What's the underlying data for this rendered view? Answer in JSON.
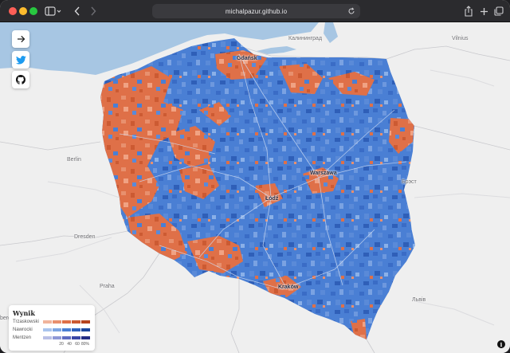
{
  "browser": {
    "url": "michalpazur.github.io"
  },
  "icons": {
    "sidebar": "sidebar-icon",
    "back": "chevron-left-icon",
    "forward": "chevron-right-icon",
    "reload": "reload-icon",
    "share": "share-icon",
    "new_tab": "plus-icon",
    "tabs": "tabs-overview-icon",
    "arrow": "arrow-right-icon",
    "twitter": "twitter-icon",
    "github": "github-icon",
    "info": "info-icon"
  },
  "map": {
    "cities_major": [
      {
        "id": "gdansk",
        "name": "Gdańsk"
      },
      {
        "id": "warszawa",
        "name": "Warszawa"
      },
      {
        "id": "lodz",
        "name": "Łódź"
      },
      {
        "id": "krakow",
        "name": "Kraków"
      }
    ],
    "cities_minor": [
      {
        "id": "kaliningrad",
        "name": "Калининград"
      },
      {
        "id": "vilnius",
        "name": "Vilnius"
      },
      {
        "id": "berlin",
        "name": "Berlin"
      },
      {
        "id": "brest",
        "name": "Брэст"
      },
      {
        "id": "dresden",
        "name": "Dresden"
      },
      {
        "id": "praha",
        "name": "Praha"
      },
      {
        "id": "lviv",
        "name": "Львів"
      },
      {
        "id": "berg",
        "name": "berg"
      }
    ],
    "colors": {
      "water": "#a7c6e3",
      "land": "#efefef",
      "blue": "#4a7fd4",
      "orange": "#df7048"
    }
  },
  "legend": {
    "title": "Wynik",
    "rows": [
      {
        "name": "Trzaskowski",
        "colors": [
          "#f0b49c",
          "#e8906e",
          "#df7048",
          "#cc5a32",
          "#b5441f"
        ]
      },
      {
        "name": "Nawrocki",
        "colors": [
          "#a9c4ee",
          "#7ea6e3",
          "#4a7fd4",
          "#2f62bd",
          "#1b479e"
        ]
      },
      {
        "name": "Mentzen",
        "colors": [
          "#b9c0e6",
          "#8f99d6",
          "#5e6cc1",
          "#3a47a6",
          "#232d84"
        ]
      }
    ],
    "ticks": [
      "20",
      "40",
      "60",
      "80%"
    ]
  },
  "info_label": "i"
}
